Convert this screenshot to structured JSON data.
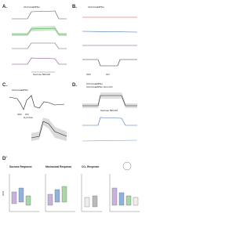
{
  "panels": {
    "a": {
      "label": "A.",
      "legend": [
        "Cbl>GCaMP6m"
      ],
      "stimulus": "Sucrose 500mM"
    },
    "b": {
      "label": "B.",
      "legend": [
        "Cbl>GCaMP6m"
      ],
      "off": "OFF",
      "on": "ON"
    },
    "c": {
      "label": "C.",
      "legend": [
        "Cbl>GCaMP6m"
      ],
      "off": "OFF",
      "on": "ON",
      "flow": "H₂O flow"
    },
    "d": {
      "label": "D.",
      "legend": [
        "Cbl>GCaMP6m",
        "Cbl>GCaMP6m Orco KO"
      ],
      "stimulus": "Sucrose 500mM"
    },
    "d_prime": {
      "label": "D'",
      "titles": [
        "Sucrose Response",
        "Mechanical Response",
        "CO₂ Response"
      ],
      "y_label": "ΔF/F"
    }
  }
}
